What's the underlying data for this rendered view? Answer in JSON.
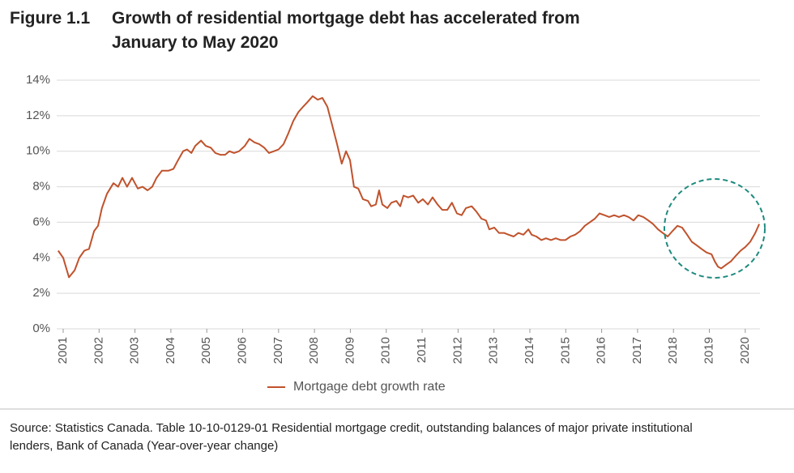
{
  "chart_data": {
    "type": "line",
    "figure_label": "Figure 1.1",
    "title": "Growth of residential mortgage debt has accelerated from January to May 2020",
    "source": "Source: Statistics Canada.  Table  10-10-0129-01   Residential mortgage credit, outstanding balances of major private institutional lenders, Bank of Canada (Year-over-year change)",
    "x": [
      2000.86,
      2001.0,
      2001.16,
      2001.32,
      2001.45,
      2001.59,
      2001.72,
      2001.86,
      2001.97,
      2002.08,
      2002.22,
      2002.4,
      2002.53,
      2002.65,
      2002.78,
      2002.92,
      2003.08,
      2003.21,
      2003.35,
      2003.48,
      2003.6,
      2003.75,
      2003.93,
      2004.07,
      2004.2,
      2004.34,
      2004.45,
      2004.57,
      2004.68,
      2004.84,
      2004.97,
      2005.11,
      2005.24,
      2005.38,
      2005.51,
      2005.63,
      2005.76,
      2005.9,
      2006.06,
      2006.19,
      2006.33,
      2006.46,
      2006.6,
      2006.73,
      2006.87,
      2007.0,
      2007.14,
      2007.27,
      2007.41,
      2007.55,
      2007.68,
      2007.82,
      2007.95,
      2008.09,
      2008.22,
      2008.36,
      2008.49,
      2008.63,
      2008.76,
      2008.88,
      2008.99,
      2009.1,
      2009.22,
      2009.35,
      2009.49,
      2009.58,
      2009.71,
      2009.8,
      2009.89,
      2010.03,
      2010.14,
      2010.28,
      2010.39,
      2010.48,
      2010.61,
      2010.75,
      2010.89,
      2011.02,
      2011.16,
      2011.29,
      2011.43,
      2011.56,
      2011.7,
      2011.83,
      2011.97,
      2012.1,
      2012.22,
      2012.38,
      2012.51,
      2012.65,
      2012.78,
      2012.87,
      2013.01,
      2013.14,
      2013.28,
      2013.41,
      2013.55,
      2013.68,
      2013.82,
      2013.96,
      2014.05,
      2014.18,
      2014.32,
      2014.45,
      2014.59,
      2014.72,
      2014.86,
      2014.99,
      2015.13,
      2015.26,
      2015.4,
      2015.53,
      2015.67,
      2015.81,
      2015.94,
      2016.08,
      2016.21,
      2016.35,
      2016.48,
      2016.62,
      2016.75,
      2016.89,
      2017.02,
      2017.16,
      2017.3,
      2017.43,
      2017.57,
      2017.7,
      2017.84,
      2017.97,
      2018.11,
      2018.24,
      2018.38,
      2018.51,
      2018.65,
      2018.78,
      2018.92,
      2019.06,
      2019.15,
      2019.24,
      2019.33,
      2019.46,
      2019.6,
      2019.73,
      2019.87,
      2020.0,
      2020.14,
      2020.28,
      2020.39
    ],
    "series": [
      {
        "name": "Mortgage debt growth rate",
        "color": "#c0522c",
        "values": [
          4.4,
          4.0,
          2.9,
          3.3,
          4.0,
          4.4,
          4.5,
          5.5,
          5.8,
          6.8,
          7.6,
          8.2,
          8.0,
          8.5,
          8.0,
          8.5,
          7.9,
          8.0,
          7.8,
          8.0,
          8.5,
          8.9,
          8.9,
          9.0,
          9.5,
          10.0,
          10.1,
          9.9,
          10.3,
          10.6,
          10.3,
          10.2,
          9.9,
          9.8,
          9.8,
          10.0,
          9.9,
          10.0,
          10.3,
          10.7,
          10.5,
          10.4,
          10.2,
          9.9,
          10.0,
          10.1,
          10.4,
          11.0,
          11.7,
          12.2,
          12.5,
          12.8,
          13.1,
          12.9,
          13.0,
          12.5,
          11.5,
          10.4,
          9.3,
          10.0,
          9.5,
          8.0,
          7.9,
          7.3,
          7.2,
          6.9,
          7.0,
          7.8,
          7.0,
          6.8,
          7.1,
          7.2,
          6.9,
          7.5,
          7.4,
          7.5,
          7.1,
          7.3,
          7.0,
          7.4,
          7.0,
          6.7,
          6.7,
          7.1,
          6.5,
          6.4,
          6.8,
          6.9,
          6.6,
          6.2,
          6.1,
          5.6,
          5.7,
          5.4,
          5.4,
          5.3,
          5.2,
          5.4,
          5.3,
          5.6,
          5.3,
          5.2,
          5.0,
          5.1,
          5.0,
          5.1,
          5.0,
          5.0,
          5.2,
          5.3,
          5.5,
          5.8,
          6.0,
          6.2,
          6.5,
          6.4,
          6.3,
          6.4,
          6.3,
          6.4,
          6.3,
          6.1,
          6.4,
          6.3,
          6.1,
          5.9,
          5.6,
          5.4,
          5.2,
          5.5,
          5.8,
          5.7,
          5.3,
          4.9,
          4.7,
          4.5,
          4.3,
          4.2,
          3.8,
          3.5,
          3.4,
          3.6,
          3.8,
          4.1,
          4.4,
          4.6,
          4.9,
          5.4,
          5.9
        ]
      }
    ],
    "xlim": [
      2000.82,
      2020.41
    ],
    "xticks": [
      2001,
      2002,
      2003,
      2004,
      2005,
      2006,
      2007,
      2008,
      2009,
      2010,
      2011,
      2012,
      2013,
      2014,
      2015,
      2016,
      2017,
      2018,
      2019,
      2020
    ],
    "ylim": [
      0,
      14
    ],
    "yticks": [
      {
        "value": 0,
        "label": "0%"
      },
      {
        "value": 2,
        "label": "2%"
      },
      {
        "value": 4,
        "label": "4%"
      },
      {
        "value": 6,
        "label": "6%"
      },
      {
        "value": 8,
        "label": "8%"
      },
      {
        "value": 10,
        "label": "10%"
      },
      {
        "value": 12,
        "label": "12%"
      },
      {
        "value": 14,
        "label": "14%"
      }
    ],
    "grid": true,
    "legend": "bottom"
  }
}
